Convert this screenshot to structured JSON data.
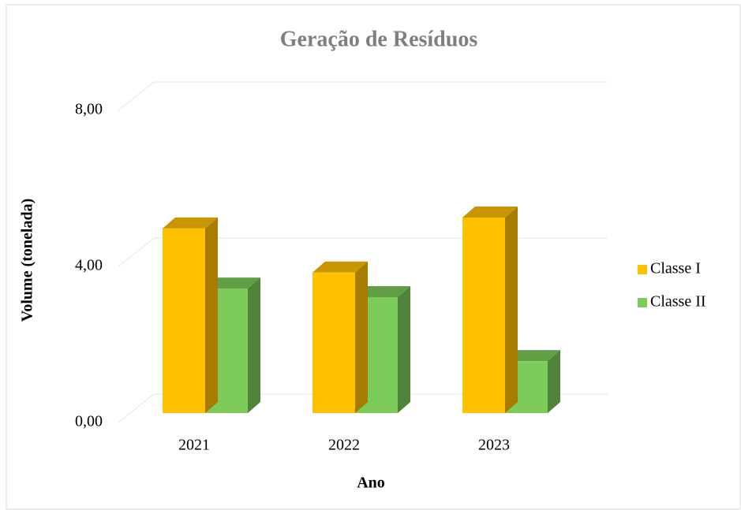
{
  "chart_data": {
    "type": "bar3d",
    "title": "Geração de Resíduos",
    "x_label": "Ano",
    "y_label": "Volume (tonelada)",
    "categories": [
      "2021",
      "2022",
      "2023"
    ],
    "series": [
      {
        "name": "Classe I",
        "color": "#ffc000",
        "values": [
          4.73,
          3.6,
          5.01
        ]
      },
      {
        "name": "Classe II",
        "color": "#7dcb5a",
        "values": [
          3.19,
          2.97,
          1.33
        ]
      }
    ],
    "ylim": [
      0,
      8
    ],
    "yticks": [
      {
        "value": 0,
        "label": "0,00"
      },
      {
        "value": 4,
        "label": "4,00"
      },
      {
        "value": 8,
        "label": "8,00"
      }
    ],
    "grid": true,
    "legend": "right"
  }
}
